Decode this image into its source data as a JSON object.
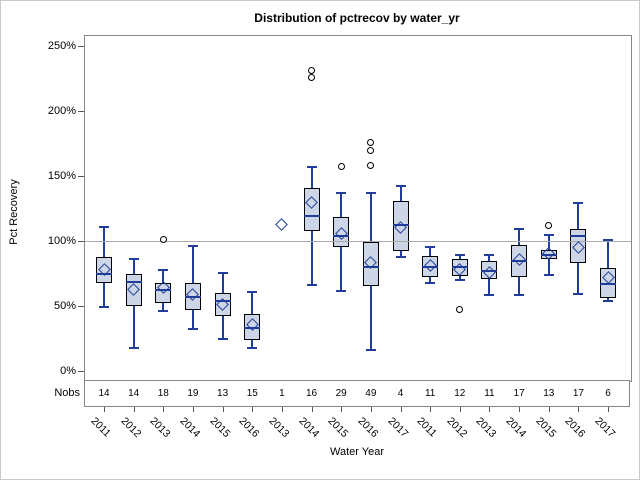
{
  "title": "Distribution of pctrecov by water_yr",
  "y_axis": {
    "label": "Pct Recovery",
    "ticks": [
      {
        "value": 0,
        "label": "0%"
      },
      {
        "value": 50,
        "label": "50%"
      },
      {
        "value": 100,
        "label": "100%"
      },
      {
        "value": 150,
        "label": "150%"
      },
      {
        "value": 200,
        "label": "200%"
      },
      {
        "value": 250,
        "label": "250%"
      }
    ],
    "reference_line_value": 100
  },
  "x_axis": {
    "label": "Water Year"
  },
  "nobs": {
    "header": "Nobs",
    "values": [
      14,
      14,
      18,
      19,
      13,
      15,
      1,
      16,
      29,
      49,
      4,
      11,
      12,
      11,
      17,
      13,
      17,
      6
    ]
  },
  "colors": {
    "box_fill": "#ccd6e6",
    "line": "#1f3d99",
    "box_border": "#000000",
    "reference_line": "#a9a9a9",
    "plot_border": "#868686",
    "tick": "#595959",
    "outlier_stroke": "#000000"
  },
  "chart_data": {
    "type": "boxplot",
    "title": "Distribution of pctrecov by water_yr",
    "xlabel": "Water Year",
    "ylabel": "Pct Recovery",
    "ylim": [
      -7,
      258.5
    ],
    "unit": "percent",
    "grid": "reference line at 100% only",
    "legend": "none",
    "categories": [
      "2011",
      "2012",
      "2013",
      "2014",
      "2015",
      "2016",
      "2013",
      "2014",
      "2015",
      "2016",
      "2017",
      "2011",
      "2012",
      "2013",
      "2014",
      "2015",
      "2016",
      "2017"
    ],
    "nobs": [
      14,
      14,
      18,
      19,
      13,
      15,
      1,
      16,
      29,
      49,
      4,
      11,
      12,
      11,
      17,
      13,
      17,
      6
    ],
    "series": [
      {
        "year": "2011",
        "n": 14,
        "low": 49,
        "q1": 67.5,
        "median": 75,
        "mean": 78,
        "q3": 87.5,
        "high": 110.5,
        "outliers": []
      },
      {
        "year": "2012",
        "n": 14,
        "low": 18,
        "q1": 50,
        "median": 68.5,
        "mean": 63,
        "q3": 74.5,
        "high": 86.5,
        "outliers": []
      },
      {
        "year": "2013",
        "n": 18,
        "low": 46,
        "q1": 52.5,
        "median": 62.5,
        "mean": 64.5,
        "q3": 68,
        "high": 78,
        "outliers": [
          101.5
        ]
      },
      {
        "year": "2014",
        "n": 19,
        "low": 32.5,
        "q1": 47,
        "median": 57,
        "mean": 59,
        "q3": 68,
        "high": 96,
        "outliers": []
      },
      {
        "year": "2015",
        "n": 13,
        "low": 25,
        "q1": 42.5,
        "median": 53.5,
        "mean": 51,
        "q3": 60,
        "high": 75.5,
        "outliers": []
      },
      {
        "year": "2016",
        "n": 15,
        "low": 17.5,
        "q1": 24,
        "median": 33,
        "mean": 36,
        "q3": 43.5,
        "high": 61,
        "outliers": []
      },
      {
        "year": "2013",
        "n": 1,
        "low": null,
        "q1": null,
        "median": null,
        "mean": 113,
        "q3": null,
        "high": null,
        "outliers": []
      },
      {
        "year": "2014",
        "n": 16,
        "low": 66,
        "q1": 107.5,
        "median": 119,
        "mean": 129.5,
        "q3": 141,
        "high": 157,
        "outliers": [
          225.5,
          231
        ]
      },
      {
        "year": "2015",
        "n": 29,
        "low": 61.5,
        "q1": 95,
        "median": 104,
        "mean": 106,
        "q3": 118.5,
        "high": 137,
        "outliers": [
          157
        ]
      },
      {
        "year": "2016",
        "n": 49,
        "low": 16,
        "q1": 65.5,
        "median": 80,
        "mean": 83.5,
        "q3": 99,
        "high": 137,
        "outliers": [
          158,
          170,
          176
        ]
      },
      {
        "year": "2017",
        "n": 4,
        "low": 87.5,
        "q1": 92.5,
        "median": 112,
        "mean": 110.5,
        "q3": 131,
        "high": 142,
        "outliers": []
      },
      {
        "year": "2011",
        "n": 11,
        "low": 68,
        "q1": 72.5,
        "median": 80,
        "mean": 81.5,
        "q3": 88.5,
        "high": 95.5,
        "outliers": []
      },
      {
        "year": "2012",
        "n": 12,
        "low": 70,
        "q1": 73,
        "median": 80,
        "mean": 78,
        "q3": 86.5,
        "high": 89.5,
        "outliers": [
          47
        ]
      },
      {
        "year": "2013",
        "n": 11,
        "low": 58.5,
        "q1": 70.5,
        "median": 77,
        "mean": 75.5,
        "q3": 84.5,
        "high": 89.5,
        "outliers": []
      },
      {
        "year": "2014",
        "n": 17,
        "low": 58.5,
        "q1": 72.5,
        "median": 84.5,
        "mean": 86,
        "q3": 97,
        "high": 109,
        "outliers": []
      },
      {
        "year": "2015",
        "n": 13,
        "low": 74,
        "q1": 86.5,
        "median": 89,
        "mean": 90.5,
        "q3": 93,
        "high": 105,
        "outliers": [
          112
        ]
      },
      {
        "year": "2016",
        "n": 17,
        "low": 59,
        "q1": 83,
        "median": 104,
        "mean": 95,
        "q3": 109,
        "high": 129.5,
        "outliers": []
      },
      {
        "year": "2017",
        "n": 6,
        "low": 54,
        "q1": 56,
        "median": 67,
        "mean": 72,
        "q3": 79,
        "high": 100.5,
        "outliers": []
      }
    ]
  }
}
